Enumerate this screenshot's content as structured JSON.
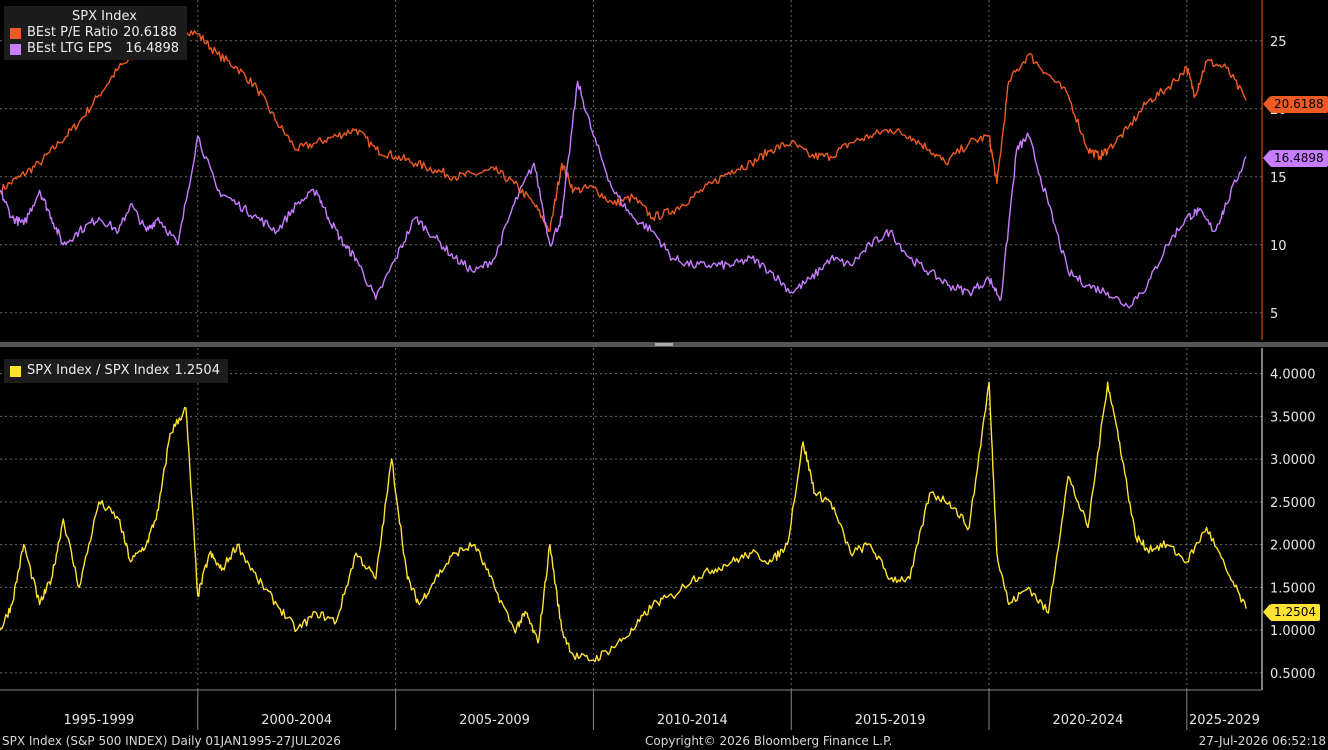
{
  "colors": {
    "pe": "#ee5a24",
    "ltg": "#c77dff",
    "ratio": "#ffe332",
    "grid": "#6a6a6a",
    "axis_text": "#e6e6e6"
  },
  "legend_top": {
    "title": "SPX Index",
    "items": [
      {
        "label": "BEst P/E Ratio",
        "value": "20.6188",
        "color": "#ee5a24"
      },
      {
        "label": "BEst LTG EPS  ",
        "value": "16.4898",
        "color": "#c77dff"
      }
    ]
  },
  "legend_bottom": {
    "label": "SPX Index / SPX Index",
    "value": "1.2504",
    "color": "#ffe332"
  },
  "value_tags": {
    "pe": "20.6188",
    "ltg": "16.4898",
    "ratio": "1.2504"
  },
  "footer": {
    "left": "SPX Index (S&P 500 INDEX) Daily 01JAN1995-27JUL2026",
    "center": "Copyright© 2026 Bloomberg Finance L.P.",
    "right": "27-Jul-2026 06:52:18"
  },
  "chart_data": [
    {
      "type": "line",
      "ylim": [
        3,
        28
      ],
      "yticks": [
        "5",
        "10",
        "15",
        "20",
        "25"
      ],
      "grid": true,
      "legend": "top-left",
      "series": [
        {
          "name": "BEst P/E Ratio",
          "x": [
            1995.0,
            1995.5,
            1996.0,
            1996.5,
            1997.0,
            1997.5,
            1998.0,
            1998.5,
            1999.0,
            1999.5,
            2000.0,
            2000.5,
            2001.0,
            2001.5,
            2002.0,
            2002.5,
            2003.0,
            2003.5,
            2004.0,
            2004.5,
            2005.0,
            2005.5,
            2006.0,
            2006.5,
            2007.0,
            2007.5,
            2008.0,
            2008.5,
            2008.9,
            2009.2,
            2009.5,
            2010.0,
            2010.5,
            2011.0,
            2011.5,
            2012.0,
            2012.5,
            2013.0,
            2013.5,
            2014.0,
            2014.5,
            2015.0,
            2015.5,
            2016.0,
            2016.5,
            2017.0,
            2017.5,
            2018.0,
            2018.5,
            2018.9,
            2019.5,
            2020.0,
            2020.2,
            2020.5,
            2021.0,
            2021.5,
            2022.0,
            2022.5,
            2022.8,
            2023.0,
            2023.5,
            2024.0,
            2024.5,
            2025.0,
            2025.2,
            2025.5,
            2026.0,
            2026.5
          ],
          "values": [
            14,
            15,
            16,
            17.5,
            19,
            21,
            23,
            24,
            25,
            26,
            25.5,
            24,
            23,
            21.5,
            19,
            17,
            17.5,
            18,
            18.5,
            17,
            16.5,
            16,
            15.5,
            15,
            15.2,
            15.5,
            14.5,
            13,
            11,
            16,
            14,
            14.2,
            13,
            13.5,
            12,
            12.5,
            13.5,
            14.5,
            15.5,
            16,
            17,
            17.5,
            16.5,
            16.5,
            17.5,
            18,
            18.5,
            18,
            17,
            16,
            17.5,
            18,
            14.5,
            22,
            24,
            22.5,
            21,
            17,
            16.5,
            17,
            18.5,
            20.5,
            21.5,
            23,
            21,
            23.5,
            23,
            20.6188
          ]
        },
        {
          "name": "BEst LTG EPS",
          "x": [
            1995.0,
            1995.3,
            1995.6,
            1996.0,
            1996.3,
            1996.6,
            1997.0,
            1997.5,
            1998.0,
            1998.3,
            1998.7,
            1999.0,
            1999.5,
            2000.0,
            2000.5,
            2001.0,
            2001.5,
            2002.0,
            2002.5,
            2003.0,
            2003.3,
            2003.7,
            2004.0,
            2004.5,
            2005.0,
            2005.5,
            2006.0,
            2006.5,
            2007.0,
            2007.5,
            2008.0,
            2008.5,
            2008.9,
            2009.2,
            2009.6,
            2010.0,
            2010.5,
            2011.0,
            2011.5,
            2012.0,
            2012.5,
            2013.0,
            2013.5,
            2014.0,
            2014.5,
            2015.0,
            2015.5,
            2016.0,
            2016.5,
            2017.0,
            2017.5,
            2018.0,
            2018.5,
            2019.0,
            2019.5,
            2020.0,
            2020.3,
            2020.7,
            2021.0,
            2021.5,
            2022.0,
            2022.5,
            2023.0,
            2023.5,
            2024.0,
            2024.5,
            2025.0,
            2025.3,
            2025.7,
            2026.0,
            2026.5
          ],
          "values": [
            14,
            12,
            11.5,
            14,
            12,
            10,
            11,
            12,
            11,
            13,
            11,
            12,
            10,
            18,
            14,
            13,
            12,
            11,
            13,
            14,
            12,
            10,
            9,
            6,
            9,
            12,
            10.5,
            9,
            8,
            9,
            13,
            16,
            10,
            12,
            22,
            18,
            14,
            12,
            11,
            9,
            8.5,
            8.5,
            8.5,
            9,
            8,
            6.5,
            7.5,
            9,
            8.5,
            10,
            11,
            9,
            8,
            7,
            6.5,
            7.5,
            6,
            17,
            18,
            13,
            8,
            7,
            6.5,
            5.5,
            7,
            10,
            12,
            12.5,
            11,
            13,
            16.4898
          ]
        }
      ]
    },
    {
      "type": "line",
      "ylim": [
        0.3,
        4.3
      ],
      "yticks": [
        "0.5000",
        "1.0000",
        "1.5000",
        "2.0000",
        "2.5000",
        "3.0000",
        "3.5000",
        "4.0000"
      ],
      "grid": true,
      "legend": "top-left",
      "series": [
        {
          "name": "SPX Index / SPX Index",
          "x": [
            1995.0,
            1995.3,
            1995.6,
            1996.0,
            1996.3,
            1996.6,
            1997.0,
            1997.5,
            1998.0,
            1998.3,
            1998.7,
            1999.0,
            1999.3,
            1999.7,
            2000.0,
            2000.3,
            2000.6,
            2001.0,
            2001.5,
            2002.0,
            2002.5,
            2003.0,
            2003.5,
            2004.0,
            2004.5,
            2004.9,
            2005.3,
            2005.6,
            2006.0,
            2006.5,
            2007.0,
            2007.5,
            2008.0,
            2008.3,
            2008.6,
            2008.9,
            2009.2,
            2009.5,
            2010.0,
            2010.5,
            2011.0,
            2011.5,
            2012.0,
            2012.5,
            2013.0,
            2013.5,
            2014.0,
            2014.5,
            2014.9,
            2015.3,
            2015.6,
            2016.0,
            2016.5,
            2017.0,
            2017.5,
            2018.0,
            2018.5,
            2019.0,
            2019.5,
            2020.0,
            2020.2,
            2020.5,
            2021.0,
            2021.5,
            2022.0,
            2022.5,
            2023.0,
            2023.3,
            2023.7,
            2024.0,
            2024.5,
            2025.0,
            2025.5,
            2026.0,
            2026.5
          ],
          "values": [
            1.0,
            1.3,
            2.0,
            1.3,
            1.6,
            2.3,
            1.5,
            2.5,
            2.3,
            1.8,
            2.0,
            2.4,
            3.3,
            3.6,
            1.4,
            1.9,
            1.7,
            2.0,
            1.6,
            1.3,
            1.0,
            1.2,
            1.1,
            1.9,
            1.6,
            3.0,
            1.6,
            1.3,
            1.6,
            1.9,
            2.0,
            1.5,
            1.0,
            1.2,
            0.85,
            2.0,
            1.0,
            0.7,
            0.65,
            0.8,
            1.0,
            1.3,
            1.4,
            1.6,
            1.7,
            1.8,
            1.9,
            1.8,
            2.0,
            3.2,
            2.6,
            2.5,
            1.9,
            2.0,
            1.6,
            1.6,
            2.6,
            2.5,
            2.2,
            3.9,
            1.9,
            1.3,
            1.5,
            1.2,
            2.8,
            2.2,
            3.9,
            3.2,
            2.1,
            1.95,
            2.0,
            1.8,
            2.2,
            1.7,
            1.2504
          ]
        }
      ]
    }
  ],
  "x_axis": {
    "periods": [
      {
        "label": "1995-1999",
        "start": 1995,
        "end": 2000
      },
      {
        "label": "2000-2004",
        "start": 2000,
        "end": 2005
      },
      {
        "label": "2005-2009",
        "start": 2005,
        "end": 2010
      },
      {
        "label": "2010-2014",
        "start": 2010,
        "end": 2015
      },
      {
        "label": "2015-2019",
        "start": 2015,
        "end": 2020
      },
      {
        "label": "2020-2024",
        "start": 2020,
        "end": 2025
      },
      {
        "label": "2025-2029",
        "start": 2025,
        "end": 2027
      }
    ],
    "range": [
      1995,
      2026.9
    ]
  }
}
